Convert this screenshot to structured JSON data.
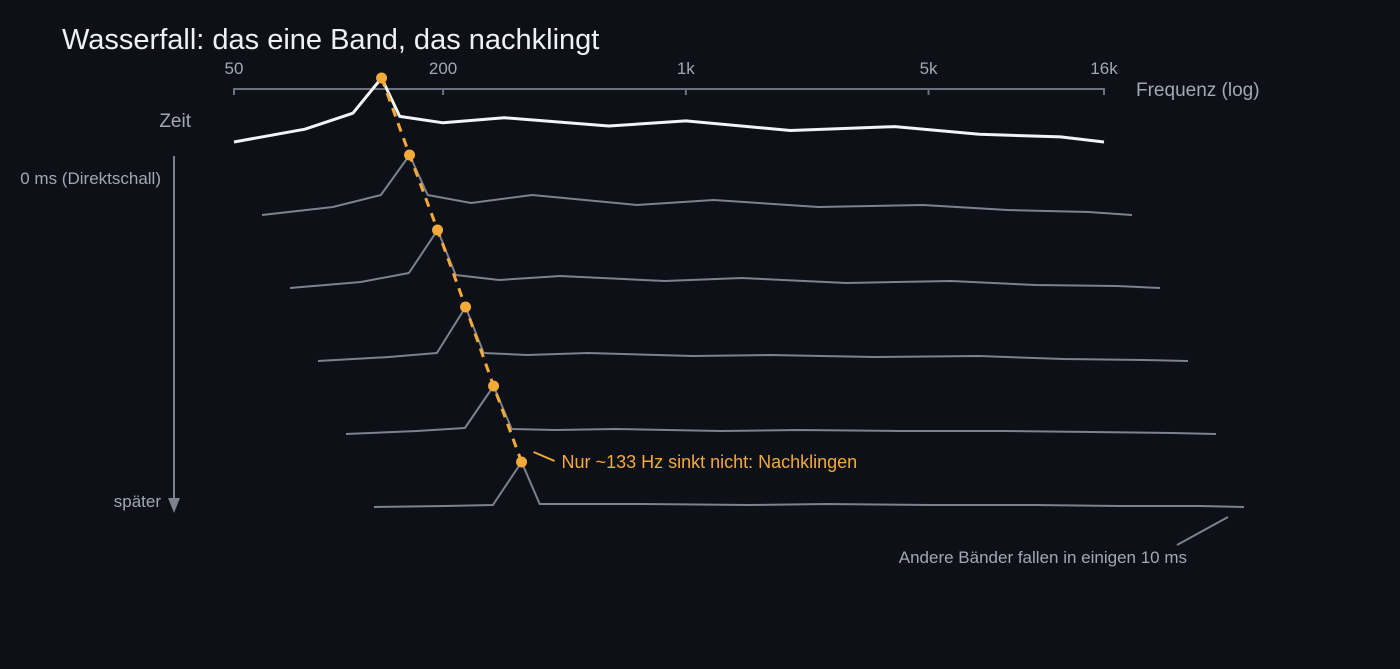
{
  "chart_data": {
    "type": "line",
    "title": "Wasserfall: das eine Band, das nachklingt",
    "xlabel": "Frequenz (log)",
    "ylabel": "Zeit",
    "x_scale": "log",
    "x_ticks": [
      {
        "value": 50,
        "label": "50"
      },
      {
        "value": 200,
        "label": "200"
      },
      {
        "value": 1000,
        "label": "1k"
      },
      {
        "value": 5000,
        "label": "5k"
      },
      {
        "value": 16000,
        "label": "16k"
      }
    ],
    "x": [
      50,
      80,
      110,
      133,
      150,
      200,
      300,
      600,
      1000,
      2000,
      4000,
      7000,
      12000,
      16000
    ],
    "y_axis_labels": {
      "start": "0 ms (Direktschall)",
      "end": "später"
    },
    "series": [
      {
        "values": [
          0.0,
          0.2,
          0.45,
          1.0,
          0.4,
          0.3,
          0.38,
          0.25,
          0.33,
          0.18,
          0.24,
          0.12,
          0.08,
          0.0
        ]
      },
      {
        "values": [
          0.0,
          0.08,
          0.2,
          0.6,
          0.2,
          0.12,
          0.2,
          0.1,
          0.15,
          0.08,
          0.1,
          0.05,
          0.03,
          0.0
        ]
      },
      {
        "values": [
          0.0,
          0.06,
          0.15,
          0.58,
          0.13,
          0.08,
          0.12,
          0.07,
          0.1,
          0.05,
          0.07,
          0.03,
          0.02,
          0.0
        ]
      },
      {
        "values": [
          0.0,
          0.04,
          0.08,
          0.54,
          0.08,
          0.06,
          0.08,
          0.05,
          0.06,
          0.04,
          0.05,
          0.02,
          0.01,
          0.0
        ]
      },
      {
        "values": [
          0.0,
          0.03,
          0.06,
          0.48,
          0.05,
          0.04,
          0.05,
          0.03,
          0.04,
          0.03,
          0.03,
          0.02,
          0.01,
          0.0
        ]
      },
      {
        "values": [
          0.0,
          0.01,
          0.02,
          0.45,
          0.03,
          0.03,
          0.03,
          0.02,
          0.03,
          0.02,
          0.02,
          0.01,
          0.01,
          0.0
        ]
      }
    ],
    "highlight": {
      "frequency": 133,
      "label": "Nur ~133 Hz sinkt nicht: Nachklingen"
    },
    "annotations": [
      "Andere Bänder fallen in einigen 10 ms"
    ],
    "colors": {
      "background": "#0d1017",
      "front_line": "#f2f4f8",
      "back_lines": "#7c828e",
      "axis": "#6b7180",
      "accent": "#f4a93b",
      "title": "#eef1f6"
    },
    "grid": false
  }
}
